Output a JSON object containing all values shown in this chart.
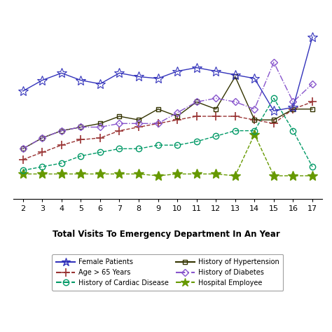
{
  "x": [
    2,
    3,
    4,
    5,
    6,
    7,
    8,
    9,
    10,
    11,
    12,
    13,
    14,
    15,
    16,
    17
  ],
  "female_patients": [
    60,
    66,
    70,
    66,
    64,
    70,
    68,
    67,
    71,
    73,
    71,
    69,
    67,
    49,
    51,
    90
  ],
  "cardiac_disease": [
    16,
    18,
    20,
    24,
    26,
    28,
    28,
    30,
    30,
    32,
    35,
    38,
    38,
    56,
    38,
    18
  ],
  "diabetes": [
    28,
    34,
    38,
    40,
    40,
    42,
    42,
    42,
    48,
    54,
    56,
    54,
    50,
    76,
    54,
    64
  ],
  "age_65": [
    22,
    26,
    30,
    33,
    34,
    38,
    40,
    42,
    44,
    46,
    46,
    46,
    44,
    42,
    50,
    54
  ],
  "hypertension": [
    28,
    34,
    38,
    40,
    42,
    46,
    44,
    50,
    46,
    54,
    50,
    68,
    44,
    44,
    50,
    50
  ],
  "hospital_employee": [
    14,
    14,
    14,
    14,
    14,
    14,
    14,
    13,
    14,
    14,
    14,
    13,
    36,
    13,
    13,
    13
  ],
  "title": "Total Visits To Emergency Department In An Year",
  "colors": {
    "female": "#3333bb",
    "cardiac": "#009966",
    "diabetes": "#8855cc",
    "age65": "#993333",
    "hypertension": "#333300",
    "hospital": "#669900"
  }
}
